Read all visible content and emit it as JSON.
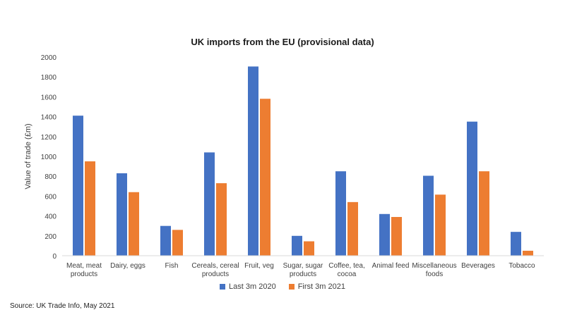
{
  "chart_data": {
    "type": "bar",
    "title": "UK imports from the EU (provisional data)",
    "xlabel": "",
    "ylabel": "Value of trade (£m)",
    "ylim": [
      0,
      2000
    ],
    "yticks": [
      0,
      200,
      400,
      600,
      800,
      1000,
      1200,
      1400,
      1600,
      1800,
      2000
    ],
    "grid": false,
    "legend_position": "bottom",
    "categories": [
      [
        "Meat, meat",
        "products"
      ],
      [
        "Dairy, eggs"
      ],
      [
        "Fish"
      ],
      [
        "Cereals, cereal",
        "products"
      ],
      [
        "Fruit, veg"
      ],
      [
        "Sugar, sugar",
        "products"
      ],
      [
        "Coffee, tea,",
        "cocoa"
      ],
      [
        "Animal feed"
      ],
      [
        "Miscellaneous",
        "foods"
      ],
      [
        "Beverages"
      ],
      [
        "Tobacco"
      ]
    ],
    "series": [
      {
        "name": "Last 3m 2020",
        "color": "#4472C4",
        "values": [
          1410,
          830,
          300,
          1040,
          1905,
          200,
          850,
          420,
          805,
          1350,
          240
        ]
      },
      {
        "name": "First 3m 2021",
        "color": "#ED7D31",
        "values": [
          950,
          640,
          260,
          730,
          1580,
          145,
          540,
          390,
          615,
          850,
          50
        ]
      }
    ],
    "source": "Source: UK Trade Info, May 2021"
  }
}
